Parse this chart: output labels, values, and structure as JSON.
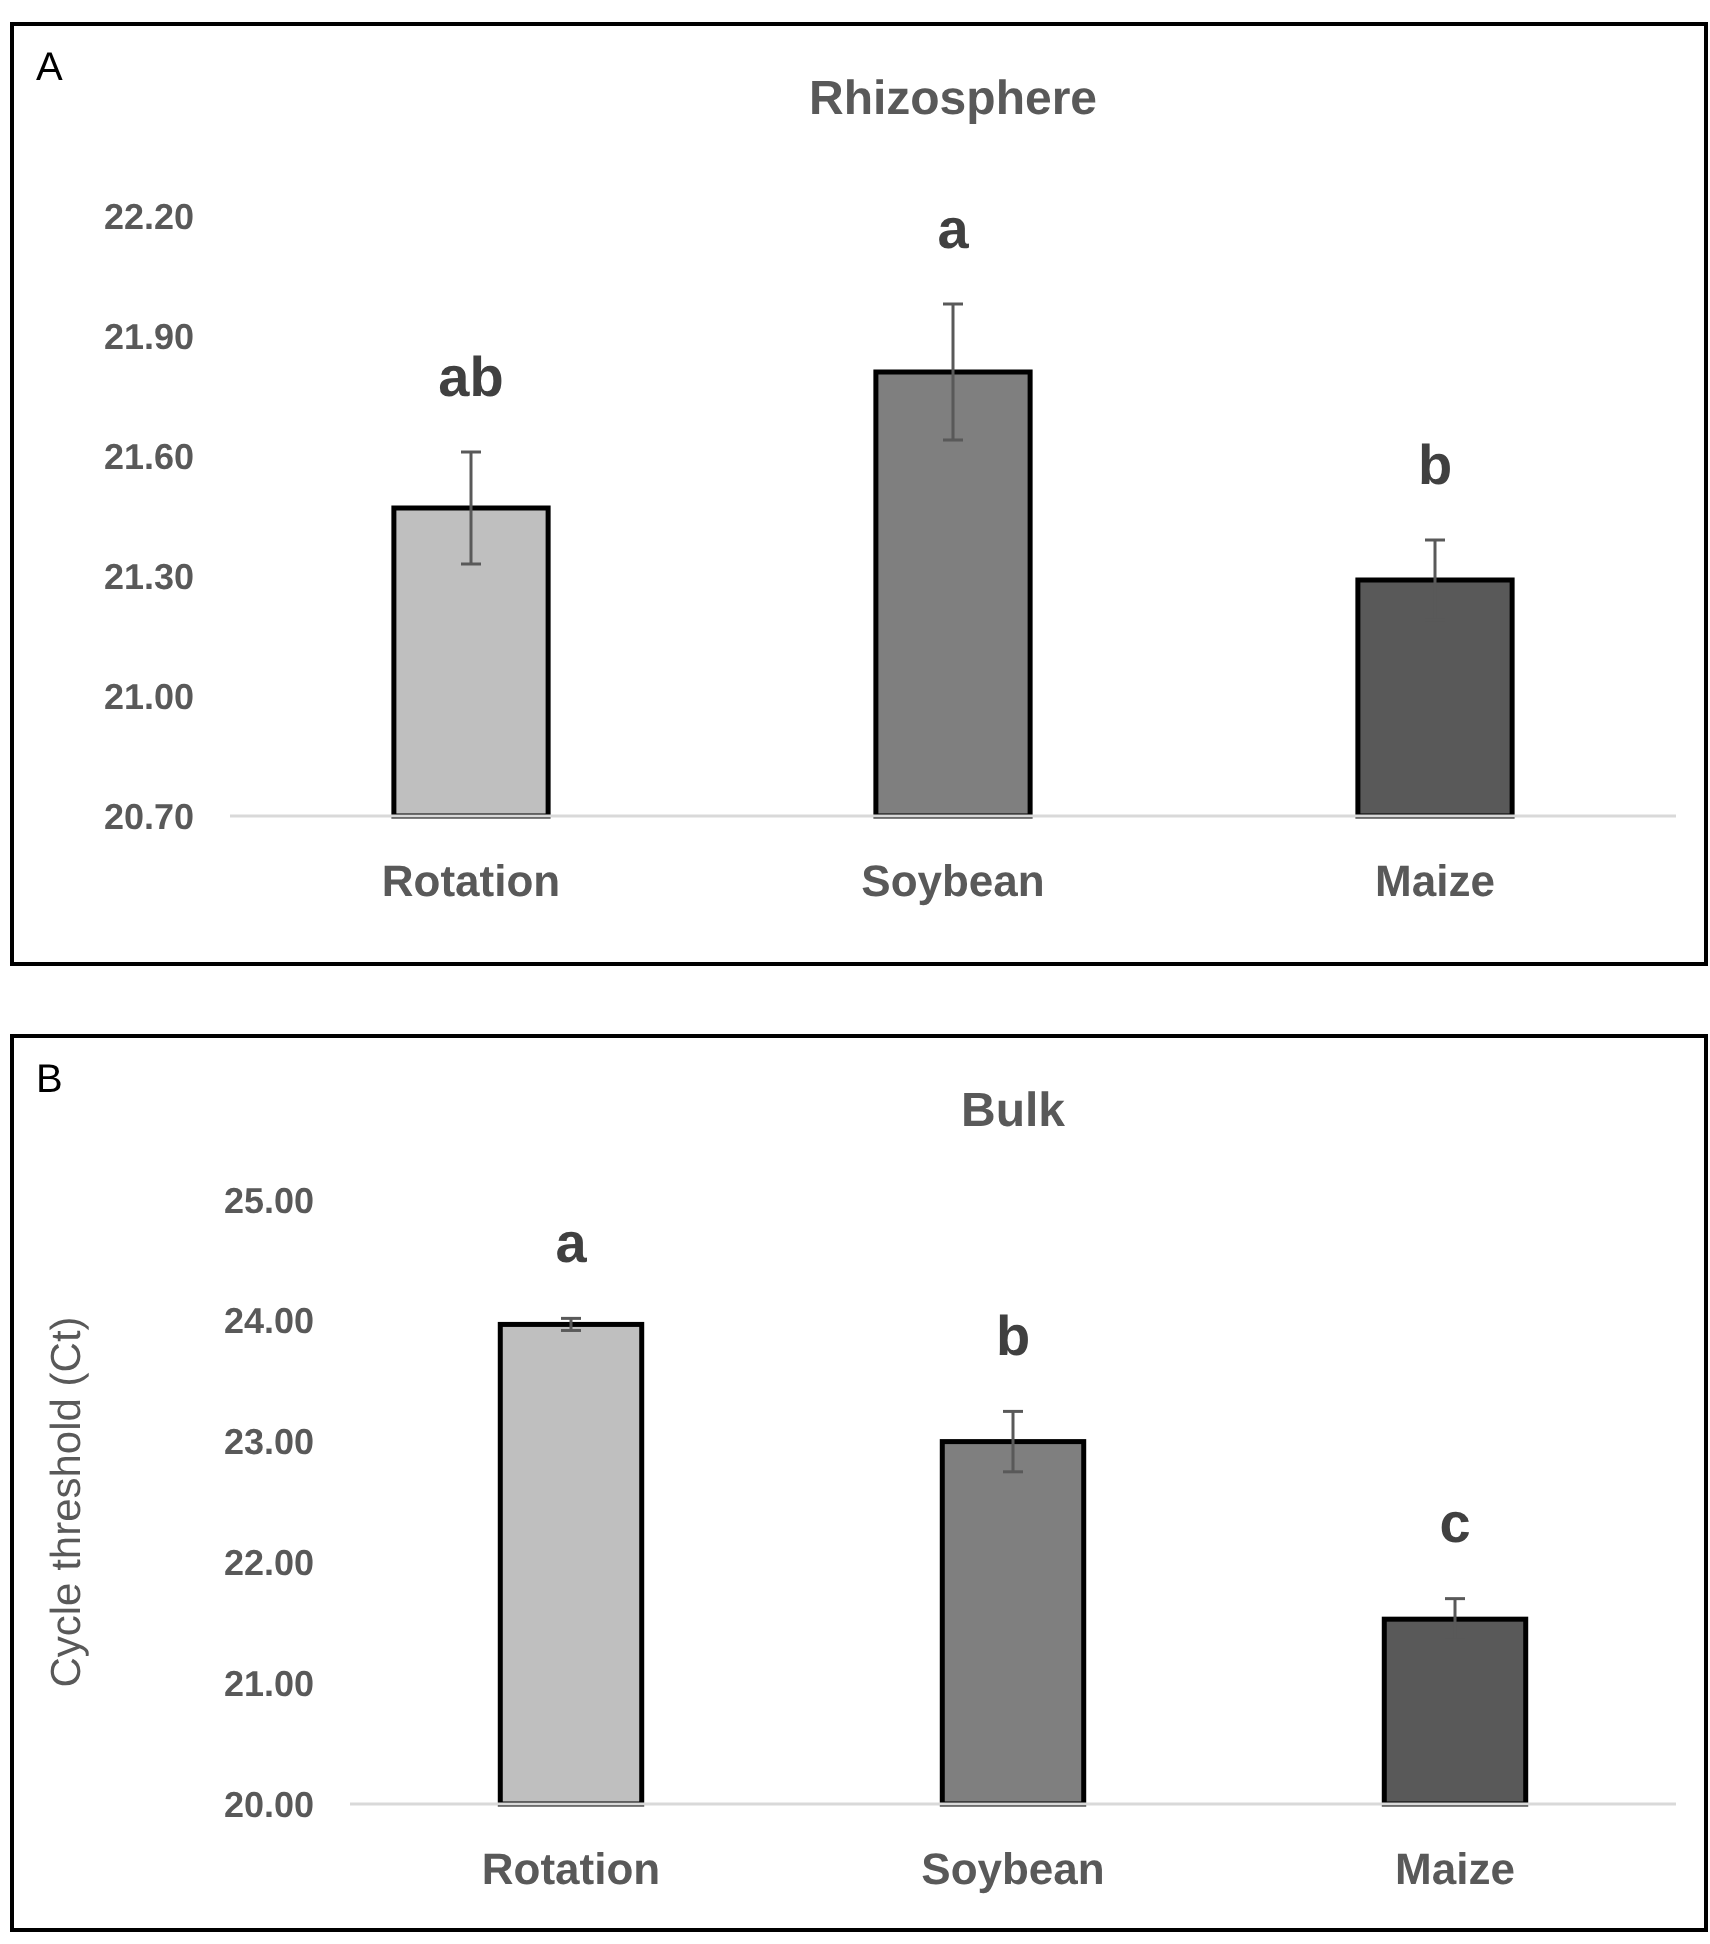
{
  "chart_data": [
    {
      "type": "bar",
      "title": "Rhizosphere",
      "categories": [
        "Rotation",
        "Soybean",
        "Maize"
      ],
      "values": [
        21.47,
        21.81,
        21.29
      ],
      "colors": [
        "#bfbfbf",
        "#7f7f7f",
        "#595959"
      ],
      "errors": [
        0.14,
        0.17,
        0.1
      ],
      "ylim": [
        20.7,
        22.2
      ],
      "yticks": [
        {
          "value": 20.7,
          "label": "20.70"
        },
        {
          "value": 21,
          "label": "21.00"
        },
        {
          "value": 21.3,
          "label": "21.30"
        },
        {
          "value": 21.6,
          "label": "21.60"
        },
        {
          "value": 21.9,
          "label": "21.90"
        },
        {
          "value": 22.2,
          "label": "22.20"
        }
      ],
      "grid": false,
      "annotations": [
        "A",
        "ab",
        "a",
        "b"
      ]
    },
    {
      "type": "bar",
      "title": "Bulk",
      "ylabel": "Cycle threshold (Ct)",
      "categories": [
        "Rotation",
        "Soybean",
        "Maize"
      ],
      "values": [
        23.97,
        23.0,
        21.53
      ],
      "colors": [
        "#bfbfbf",
        "#7f7f7f",
        "#595959"
      ],
      "errors": [
        0.05,
        0.25,
        0.17
      ],
      "ylim": [
        20,
        25
      ],
      "yticks": [
        {
          "value": 20,
          "label": "20.00"
        },
        {
          "value": 21,
          "label": "21.00"
        },
        {
          "value": 22,
          "label": "22.00"
        },
        {
          "value": 23,
          "label": "23.00"
        },
        {
          "value": 24,
          "label": "24.00"
        },
        {
          "value": 25,
          "label": "25.00"
        }
      ],
      "grid": false,
      "annotations": [
        "B",
        "a",
        "b",
        "c"
      ]
    }
  ]
}
